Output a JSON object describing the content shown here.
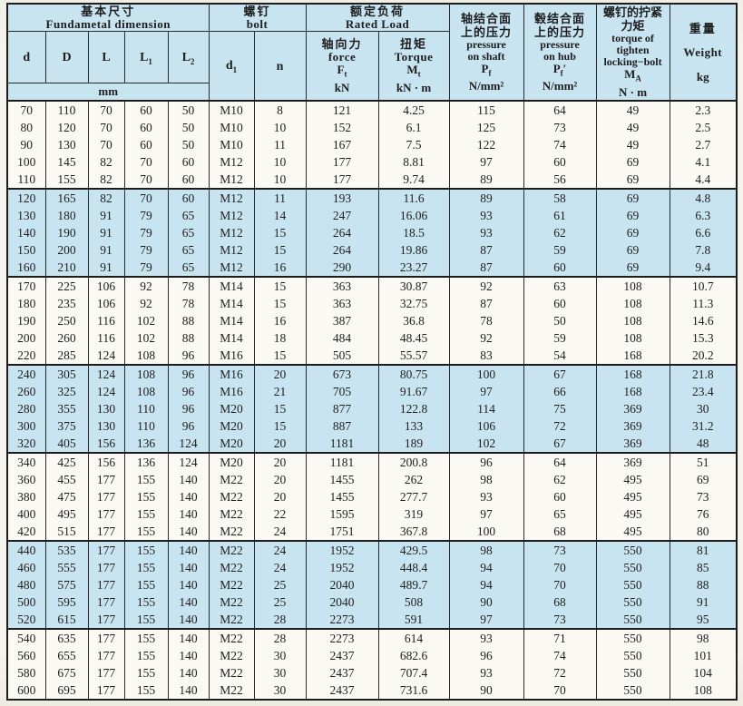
{
  "header": {
    "dimension": {
      "zh": "基本尺寸",
      "en": "Fundametal  dimension",
      "unit": "mm"
    },
    "bolt": {
      "zh": "螺钉",
      "en": "bolt"
    },
    "rated": {
      "zh": "额定负荷",
      "en": "Rated  Load"
    },
    "cols": {
      "d": {
        "base": "d"
      },
      "D": {
        "base": "D"
      },
      "L": {
        "base": "L"
      },
      "L1": {
        "base": "L",
        "sub": "1"
      },
      "L2": {
        "base": "L",
        "sub": "2"
      },
      "d1": {
        "base": "d",
        "sub": "1"
      },
      "n": {
        "base": "n"
      },
      "force": {
        "zh": "轴向力",
        "en": "force",
        "sym": "F",
        "sym_sub": "t",
        "unit": "kN"
      },
      "torque": {
        "zh": "扭矩",
        "en": "Torque",
        "sym": "M",
        "sym_sub": "t",
        "unit": "kN · m"
      },
      "pressure_shaft": {
        "zh_line1": "轴结合面",
        "zh_line2": "上的压力",
        "en_line1": "pressure",
        "en_line2": "on  shaft",
        "sym": "P",
        "sym_sub": "f",
        "unit": "N/mm²"
      },
      "pressure_hub": {
        "zh_line1": "毂结合面",
        "zh_line2": "上的压力",
        "en_line1": "pressure",
        "en_line2": "on  hub",
        "sym": "P",
        "sym_sub": "f",
        "prime": "′",
        "unit": "N/mm²"
      },
      "tighten": {
        "zh_line1": "螺钉的拧紧",
        "zh_line2": "力矩",
        "en_line1": "torque of",
        "en_line2": "tighten",
        "en_line3": "locking−bolt",
        "sym": "M",
        "sym_sub": "A",
        "unit": "N · m"
      },
      "weight": {
        "zh": "重量",
        "en": "Weight",
        "unit": "kg"
      }
    }
  },
  "row_groups": [
    {
      "shaded": false,
      "rows": [
        [
          "70",
          "110",
          "70",
          "60",
          "50",
          "M10",
          "8",
          "121",
          "4.25",
          "115",
          "64",
          "49",
          "2.3"
        ],
        [
          "80",
          "120",
          "70",
          "60",
          "50",
          "M10",
          "10",
          "152",
          "6.1",
          "125",
          "73",
          "49",
          "2.5"
        ],
        [
          "90",
          "130",
          "70",
          "60",
          "50",
          "M10",
          "11",
          "167",
          "7.5",
          "122",
          "74",
          "49",
          "2.7"
        ],
        [
          "100",
          "145",
          "82",
          "70",
          "60",
          "M12",
          "10",
          "177",
          "8.81",
          "97",
          "60",
          "69",
          "4.1"
        ],
        [
          "110",
          "155",
          "82",
          "70",
          "60",
          "M12",
          "10",
          "177",
          "9.74",
          "89",
          "56",
          "69",
          "4.4"
        ]
      ]
    },
    {
      "shaded": true,
      "rows": [
        [
          "120",
          "165",
          "82",
          "70",
          "60",
          "M12",
          "11",
          "193",
          "11.6",
          "89",
          "58",
          "69",
          "4.8"
        ],
        [
          "130",
          "180",
          "91",
          "79",
          "65",
          "M12",
          "14",
          "247",
          "16.06",
          "93",
          "61",
          "69",
          "6.3"
        ],
        [
          "140",
          "190",
          "91",
          "79",
          "65",
          "M12",
          "15",
          "264",
          "18.5",
          "93",
          "62",
          "69",
          "6.6"
        ],
        [
          "150",
          "200",
          "91",
          "79",
          "65",
          "M12",
          "15",
          "264",
          "19.86",
          "87",
          "59",
          "69",
          "7.8"
        ],
        [
          "160",
          "210",
          "91",
          "79",
          "65",
          "M12",
          "16",
          "290",
          "23.27",
          "87",
          "60",
          "69",
          "9.4"
        ]
      ]
    },
    {
      "shaded": false,
      "rows": [
        [
          "170",
          "225",
          "106",
          "92",
          "78",
          "M14",
          "15",
          "363",
          "30.87",
          "92",
          "63",
          "108",
          "10.7"
        ],
        [
          "180",
          "235",
          "106",
          "92",
          "78",
          "M14",
          "15",
          "363",
          "32.75",
          "87",
          "60",
          "108",
          "11.3"
        ],
        [
          "190",
          "250",
          "116",
          "102",
          "88",
          "M14",
          "16",
          "387",
          "36.8",
          "78",
          "50",
          "108",
          "14.6"
        ],
        [
          "200",
          "260",
          "116",
          "102",
          "88",
          "M14",
          "18",
          "484",
          "48.45",
          "92",
          "59",
          "108",
          "15.3"
        ],
        [
          "220",
          "285",
          "124",
          "108",
          "96",
          "M16",
          "15",
          "505",
          "55.57",
          "83",
          "54",
          "168",
          "20.2"
        ]
      ]
    },
    {
      "shaded": true,
      "rows": [
        [
          "240",
          "305",
          "124",
          "108",
          "96",
          "M16",
          "20",
          "673",
          "80.75",
          "100",
          "67",
          "168",
          "21.8"
        ],
        [
          "260",
          "325",
          "124",
          "108",
          "96",
          "M16",
          "21",
          "705",
          "91.67",
          "97",
          "66",
          "168",
          "23.4"
        ],
        [
          "280",
          "355",
          "130",
          "110",
          "96",
          "M20",
          "15",
          "877",
          "122.8",
          "114",
          "75",
          "369",
          "30"
        ],
        [
          "300",
          "375",
          "130",
          "110",
          "96",
          "M20",
          "15",
          "887",
          "133",
          "106",
          "72",
          "369",
          "31.2"
        ],
        [
          "320",
          "405",
          "156",
          "136",
          "124",
          "M20",
          "20",
          "1181",
          "189",
          "102",
          "67",
          "369",
          "48"
        ]
      ]
    },
    {
      "shaded": false,
      "rows": [
        [
          "340",
          "425",
          "156",
          "136",
          "124",
          "M20",
          "20",
          "1181",
          "200.8",
          "96",
          "64",
          "369",
          "51"
        ],
        [
          "360",
          "455",
          "177",
          "155",
          "140",
          "M22",
          "20",
          "1455",
          "262",
          "98",
          "62",
          "495",
          "69"
        ],
        [
          "380",
          "475",
          "177",
          "155",
          "140",
          "M22",
          "20",
          "1455",
          "277.7",
          "93",
          "60",
          "495",
          "73"
        ],
        [
          "400",
          "495",
          "177",
          "155",
          "140",
          "M22",
          "22",
          "1595",
          "319",
          "97",
          "65",
          "495",
          "76"
        ],
        [
          "420",
          "515",
          "177",
          "155",
          "140",
          "M22",
          "24",
          "1751",
          "367.8",
          "100",
          "68",
          "495",
          "80"
        ]
      ]
    },
    {
      "shaded": true,
      "rows": [
        [
          "440",
          "535",
          "177",
          "155",
          "140",
          "M22",
          "24",
          "1952",
          "429.5",
          "98",
          "73",
          "550",
          "81"
        ],
        [
          "460",
          "555",
          "177",
          "155",
          "140",
          "M22",
          "24",
          "1952",
          "448.4",
          "94",
          "70",
          "550",
          "85"
        ],
        [
          "480",
          "575",
          "177",
          "155",
          "140",
          "M22",
          "25",
          "2040",
          "489.7",
          "94",
          "70",
          "550",
          "88"
        ],
        [
          "500",
          "595",
          "177",
          "155",
          "140",
          "M22",
          "25",
          "2040",
          "508",
          "90",
          "68",
          "550",
          "91"
        ],
        [
          "520",
          "615",
          "177",
          "155",
          "140",
          "M22",
          "28",
          "2273",
          "591",
          "97",
          "73",
          "550",
          "95"
        ]
      ]
    },
    {
      "shaded": false,
      "rows": [
        [
          "540",
          "635",
          "177",
          "155",
          "140",
          "M22",
          "28",
          "2273",
          "614",
          "93",
          "71",
          "550",
          "98"
        ],
        [
          "560",
          "655",
          "177",
          "155",
          "140",
          "M22",
          "30",
          "2437",
          "682.6",
          "96",
          "74",
          "550",
          "101"
        ],
        [
          "580",
          "675",
          "177",
          "155",
          "140",
          "M22",
          "30",
          "2437",
          "707.4",
          "93",
          "72",
          "550",
          "104"
        ],
        [
          "600",
          "695",
          "177",
          "155",
          "140",
          "M22",
          "30",
          "2437",
          "731.6",
          "90",
          "70",
          "550",
          "108"
        ]
      ]
    }
  ]
}
